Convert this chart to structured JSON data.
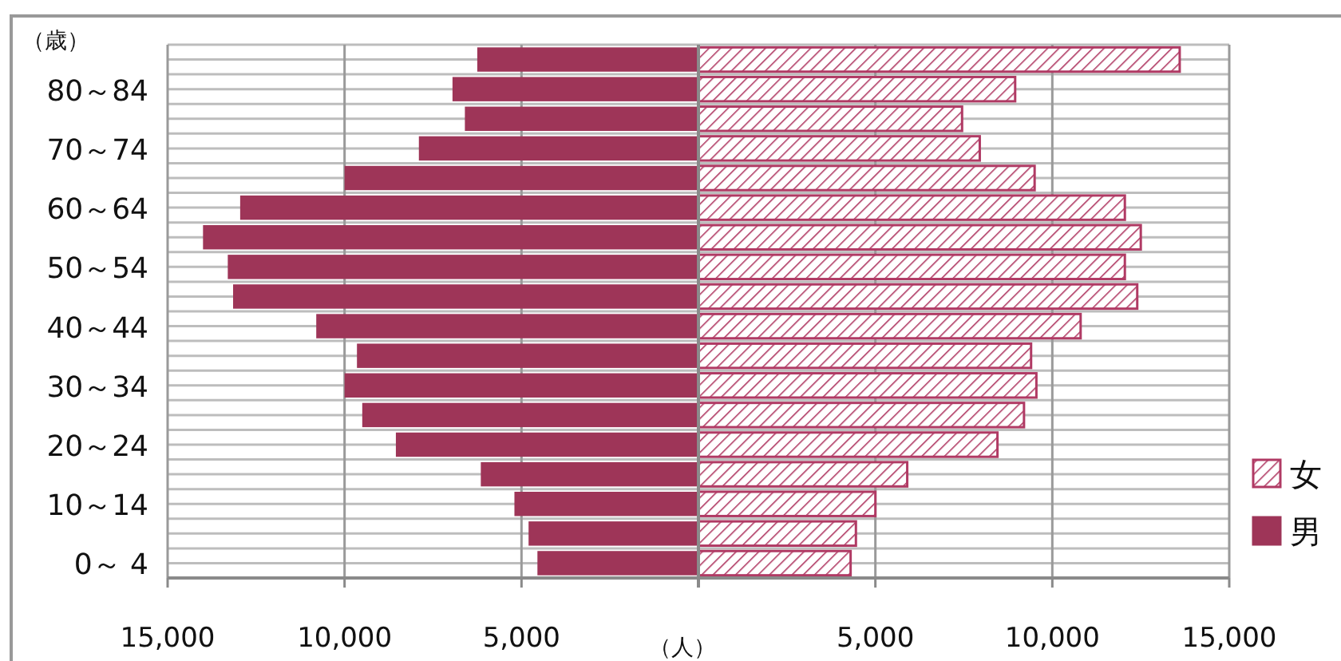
{
  "chart_data": {
    "type": "bar",
    "orientation": "horizontal",
    "ylabel": "（歳）",
    "xlabel": "（人）",
    "categories": [
      null,
      "80～84",
      null,
      "70～74",
      null,
      "60～64",
      null,
      "50～54",
      null,
      "40～44",
      null,
      "30～34",
      null,
      "20～24",
      null,
      "10～14",
      null,
      "0～ 4"
    ],
    "series": [
      {
        "name": "女",
        "color": "#b03a64",
        "values": [
          13600,
          8950,
          7450,
          7950,
          9500,
          12050,
          12500,
          12050,
          12400,
          10800,
          9400,
          9550,
          9200,
          8450,
          5900,
          5000,
          4450,
          4300
        ]
      },
      {
        "name": "男",
        "color": "#9e3558",
        "values": [
          -6250,
          -6950,
          -6600,
          -7900,
          -10000,
          -12950,
          -14000,
          -13300,
          -13150,
          -10800,
          -9650,
          -10000,
          -9500,
          -8550,
          -6150,
          -5200,
          -4800,
          -4550
        ]
      }
    ],
    "xlim": [
      -15000,
      15000
    ],
    "xticks": [
      {
        "value": -15000,
        "label": "15,000"
      },
      {
        "value": -10000,
        "label": "10,000"
      },
      {
        "value": -5000,
        "label": "5,000"
      },
      {
        "value": 0,
        "label": null
      },
      {
        "value": 5000,
        "label": "5,000"
      },
      {
        "value": 10000,
        "label": "10,000"
      },
      {
        "value": 15000,
        "label": "15,000"
      }
    ],
    "stacked": true,
    "grid": true,
    "legend": "right"
  }
}
